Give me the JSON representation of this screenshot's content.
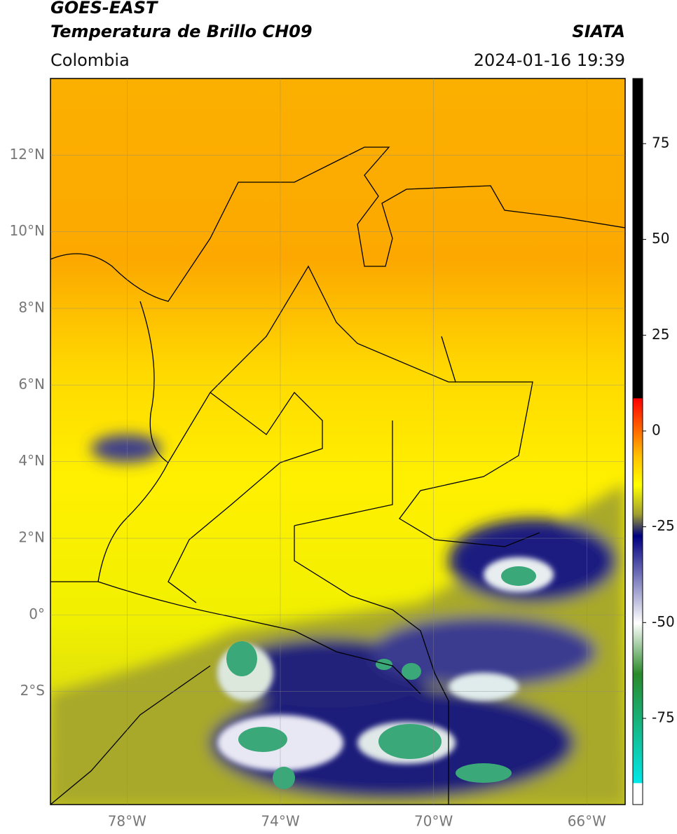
{
  "header": {
    "satellite": "GOES-EAST",
    "product": "Temperatura de Brillo CH09",
    "region": "Colombia",
    "source": "SIATA",
    "datetime": "2024-01-16 19:39"
  },
  "map": {
    "lonlim": [
      -80,
      -65
    ],
    "latlim": [
      -4.95,
      14
    ],
    "lat_ticks": [
      {
        "value": 12,
        "label": "12°N"
      },
      {
        "value": 10,
        "label": "10°N"
      },
      {
        "value": 8,
        "label": "8°N"
      },
      {
        "value": 6,
        "label": "6°N"
      },
      {
        "value": 4,
        "label": "4°N"
      },
      {
        "value": 2,
        "label": "2°N"
      },
      {
        "value": 0,
        "label": "0°"
      },
      {
        "value": -2,
        "label": "2°S"
      }
    ],
    "lon_ticks": [
      {
        "value": -78,
        "label": "78°W"
      },
      {
        "value": -74,
        "label": "74°W"
      },
      {
        "value": -70,
        "label": "70°W"
      },
      {
        "value": -66,
        "label": "66°W"
      }
    ]
  },
  "colorbar": {
    "lim": [
      -97.5,
      92
    ],
    "ticks": [
      75,
      50,
      25,
      0,
      -25,
      -50,
      -75
    ]
  }
}
